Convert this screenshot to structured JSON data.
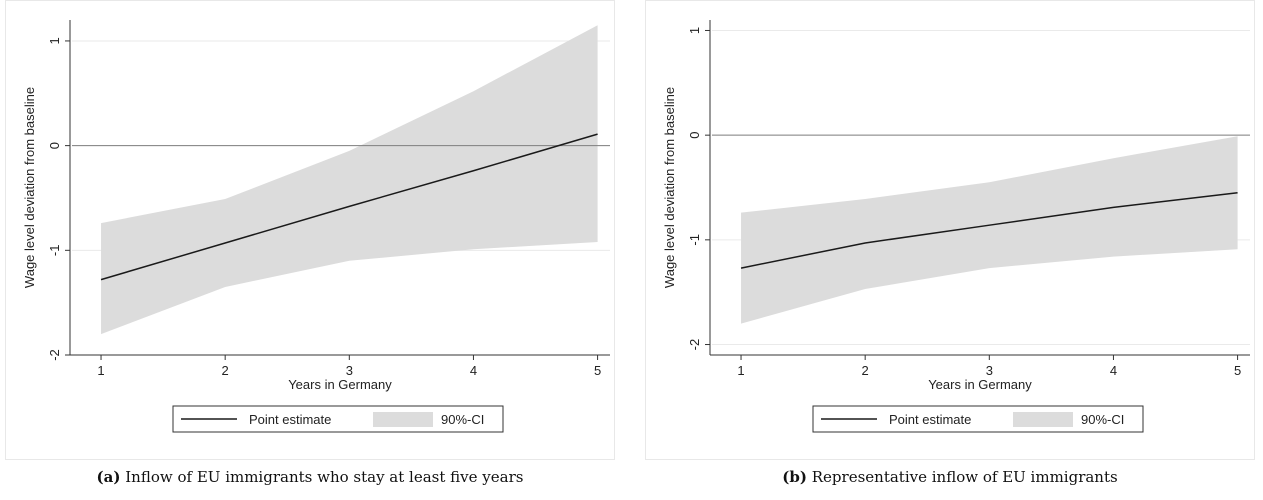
{
  "chart_data": [
    {
      "type": "line",
      "x": [
        1,
        2,
        3,
        4,
        5
      ],
      "xlabel": "Years in Germany",
      "ylabel": "Wage level deviation from baseline",
      "xticks": [
        "1",
        "2",
        "3",
        "4",
        "5"
      ],
      "yticks": [
        "-2",
        "-1",
        "0",
        "1"
      ],
      "ylim": [
        -2,
        1.2
      ],
      "xlim": [
        0.75,
        5.1
      ],
      "reference_line": 0,
      "series": [
        {
          "name": "Point estimate",
          "values": [
            -1.28,
            -0.93,
            -0.58,
            -0.24,
            0.11
          ]
        },
        {
          "name": "90%-CI",
          "lower": [
            -1.8,
            -1.35,
            -1.1,
            -0.99,
            -0.92
          ],
          "upper": [
            -0.74,
            -0.51,
            -0.05,
            0.52,
            1.15
          ]
        }
      ],
      "legend": {
        "position": "bottom",
        "items": [
          "Point estimate",
          "90%-CI"
        ]
      },
      "caption_tag": "(a)",
      "caption": "Inflow of EU immigrants who stay at least five years"
    },
    {
      "type": "line",
      "x": [
        1,
        2,
        3,
        4,
        5
      ],
      "xlabel": "Years in Germany",
      "ylabel": "Wage level deviation from baseline",
      "xticks": [
        "1",
        "2",
        "3",
        "4",
        "5"
      ],
      "yticks": [
        "-2",
        "-1",
        "0",
        "1"
      ],
      "ylim": [
        -2.1,
        1.1
      ],
      "xlim": [
        0.75,
        5.1
      ],
      "reference_line": 0,
      "series": [
        {
          "name": "Point estimate",
          "values": [
            -1.27,
            -1.03,
            -0.86,
            -0.69,
            -0.55
          ]
        },
        {
          "name": "90%-CI",
          "lower": [
            -1.8,
            -1.47,
            -1.27,
            -1.16,
            -1.09
          ],
          "upper": [
            -0.74,
            -0.61,
            -0.45,
            -0.22,
            -0.01
          ]
        }
      ],
      "legend": {
        "position": "bottom",
        "items": [
          "Point estimate",
          "90%-CI"
        ]
      },
      "caption_tag": "(b)",
      "caption": "Representative inflow of EU immigrants"
    }
  ],
  "colors": {
    "outer_frame": "#e8e8e8",
    "grid": "#eaeaea",
    "ci_fill": "#dcdcdc",
    "line": "#1a1a1a",
    "reference": "#7f7f7f"
  }
}
